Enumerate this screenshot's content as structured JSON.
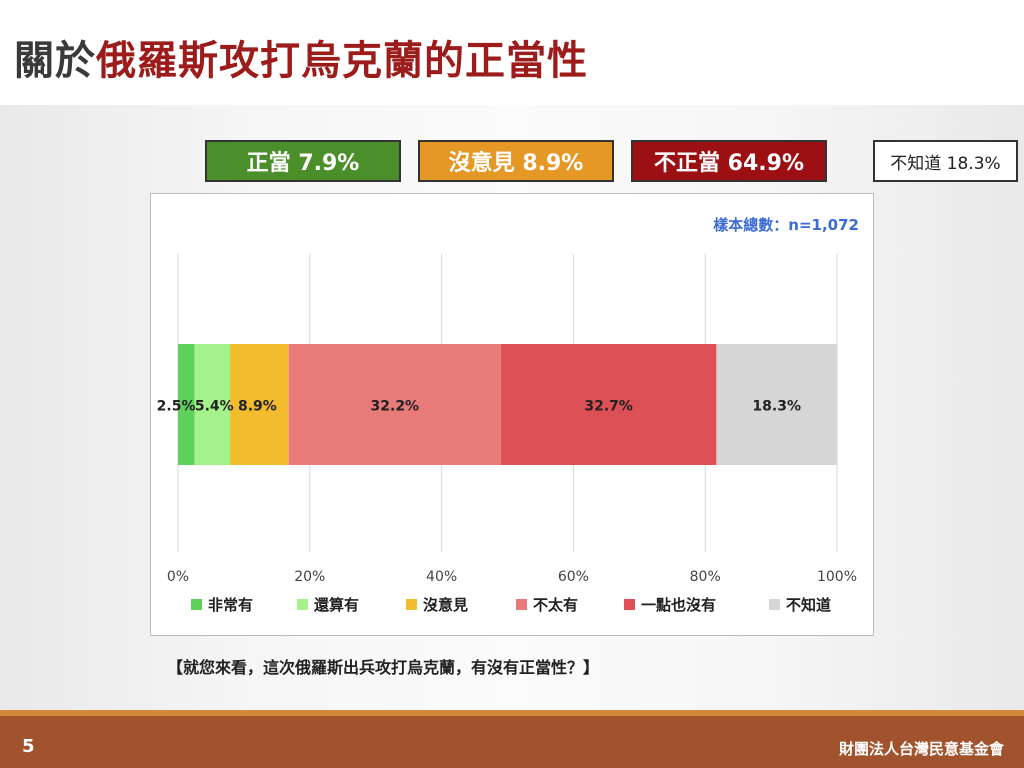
{
  "title": {
    "part1": "關於",
    "part2": "俄羅斯攻打烏克蘭的正當性"
  },
  "summary": [
    {
      "label": "正當 7.9%",
      "bg": "#4a8f2a",
      "fg": "#ffffff"
    },
    {
      "label": "沒意見 8.9%",
      "bg": "#e59826",
      "fg": "#ffffff"
    },
    {
      "label": "不正當 64.9%",
      "bg": "#9c0f12",
      "fg": "#ffffff"
    },
    {
      "label": "不知道 18.3%",
      "bg": "#ffffff",
      "fg": "#222222"
    }
  ],
  "sample_size": "樣本總數：n=1,072",
  "question": "【就您來看，這次俄羅斯出兵攻打烏克蘭，有沒有正當性？】",
  "page_number": "5",
  "organization": "財團法人台灣民意基金會",
  "chart_data": {
    "type": "bar",
    "orientation": "horizontal",
    "stacked": true,
    "xlim": [
      0,
      100
    ],
    "x_ticks": [
      "0%",
      "20%",
      "40%",
      "60%",
      "80%",
      "100%"
    ],
    "grid": true,
    "legend_position": "bottom",
    "series": [
      {
        "name": "非常有",
        "value": 2.5,
        "label": "2.5%",
        "color": "#5fd05a"
      },
      {
        "name": "還算有",
        "value": 5.4,
        "label": "5.4%",
        "color": "#a6f28c"
      },
      {
        "name": "沒意見",
        "value": 8.9,
        "label": "8.9%",
        "color": "#f2bc2e"
      },
      {
        "name": "不太有",
        "value": 32.2,
        "label": "32.2%",
        "color": "#e87a7a"
      },
      {
        "name": "一點也沒有",
        "value": 32.7,
        "label": "32.7%",
        "color": "#dd5055"
      },
      {
        "name": "不知道",
        "value": 18.3,
        "label": "18.3%",
        "color": "#d6d6d6"
      }
    ]
  }
}
